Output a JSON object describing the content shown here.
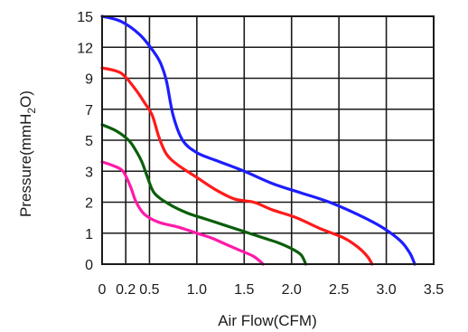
{
  "chart_data": {
    "type": "line",
    "xlabel": "Air Flow(CFM)",
    "ylabel": {
      "pre": "Pressure(mmH",
      "sub": "2",
      "post": "O)"
    },
    "x_ticks": [
      {
        "label": "0",
        "value": 0
      },
      {
        "label": "0.2",
        "value": 0.25
      },
      {
        "label": "0.5",
        "value": 0.5
      },
      {
        "label": "1.0",
        "value": 1.0
      },
      {
        "label": "1.5",
        "value": 1.5
      },
      {
        "label": "2.0",
        "value": 2.0
      },
      {
        "label": "2.5",
        "value": 2.5
      },
      {
        "label": "3.0",
        "value": 3.0
      },
      {
        "label": "3.5",
        "value": 3.5
      }
    ],
    "y_ticks": [
      "0",
      "1",
      "2",
      "3",
      "5",
      "7",
      "9",
      "12",
      "15"
    ],
    "xlim": [
      0,
      3.5
    ],
    "grid": true,
    "series": [
      {
        "color": "#1d1dff",
        "points": [
          [
            0,
            15
          ],
          [
            0.2,
            14.5
          ],
          [
            0.4,
            13.2
          ],
          [
            0.55,
            11.5
          ],
          [
            0.62,
            10.4
          ],
          [
            0.68,
            8.8
          ],
          [
            0.75,
            6.6
          ],
          [
            0.85,
            5.0
          ],
          [
            1.0,
            4.2
          ],
          [
            1.2,
            3.7
          ],
          [
            1.5,
            3.0
          ],
          [
            1.8,
            2.6
          ],
          [
            2.1,
            2.3
          ],
          [
            2.4,
            2.0
          ],
          [
            2.7,
            1.6
          ],
          [
            2.95,
            1.2
          ],
          [
            3.15,
            0.75
          ],
          [
            3.25,
            0.35
          ],
          [
            3.3,
            0
          ]
        ]
      },
      {
        "color": "#ff1a1a",
        "points": [
          [
            0,
            10
          ],
          [
            0.2,
            9.5
          ],
          [
            0.35,
            8.3
          ],
          [
            0.45,
            7.4
          ],
          [
            0.53,
            6.6
          ],
          [
            0.6,
            5.2
          ],
          [
            0.68,
            4.1
          ],
          [
            0.8,
            3.4
          ],
          [
            1.0,
            2.8
          ],
          [
            1.2,
            2.4
          ],
          [
            1.4,
            2.1
          ],
          [
            1.6,
            2.0
          ],
          [
            1.8,
            1.75
          ],
          [
            2.05,
            1.5
          ],
          [
            2.3,
            1.15
          ],
          [
            2.55,
            0.85
          ],
          [
            2.7,
            0.55
          ],
          [
            2.8,
            0.25
          ],
          [
            2.85,
            0
          ]
        ]
      },
      {
        "color": "#0b5e0b",
        "points": [
          [
            0,
            6
          ],
          [
            0.15,
            5.6
          ],
          [
            0.28,
            5.0
          ],
          [
            0.35,
            4.4
          ],
          [
            0.42,
            3.6
          ],
          [
            0.48,
            2.8
          ],
          [
            0.55,
            2.3
          ],
          [
            0.7,
            1.95
          ],
          [
            0.9,
            1.65
          ],
          [
            1.1,
            1.45
          ],
          [
            1.3,
            1.25
          ],
          [
            1.5,
            1.05
          ],
          [
            1.7,
            0.85
          ],
          [
            1.85,
            0.7
          ],
          [
            2.0,
            0.5
          ],
          [
            2.1,
            0.3
          ],
          [
            2.15,
            0
          ]
        ]
      },
      {
        "color": "#ff1aa8",
        "points": [
          [
            0,
            3.6
          ],
          [
            0.12,
            3.35
          ],
          [
            0.22,
            3.0
          ],
          [
            0.3,
            2.5
          ],
          [
            0.36,
            2.0
          ],
          [
            0.45,
            1.6
          ],
          [
            0.6,
            1.35
          ],
          [
            0.8,
            1.2
          ],
          [
            1.0,
            1.0
          ],
          [
            1.15,
            0.85
          ],
          [
            1.3,
            0.65
          ],
          [
            1.45,
            0.45
          ],
          [
            1.6,
            0.25
          ],
          [
            1.7,
            0
          ]
        ]
      }
    ]
  }
}
